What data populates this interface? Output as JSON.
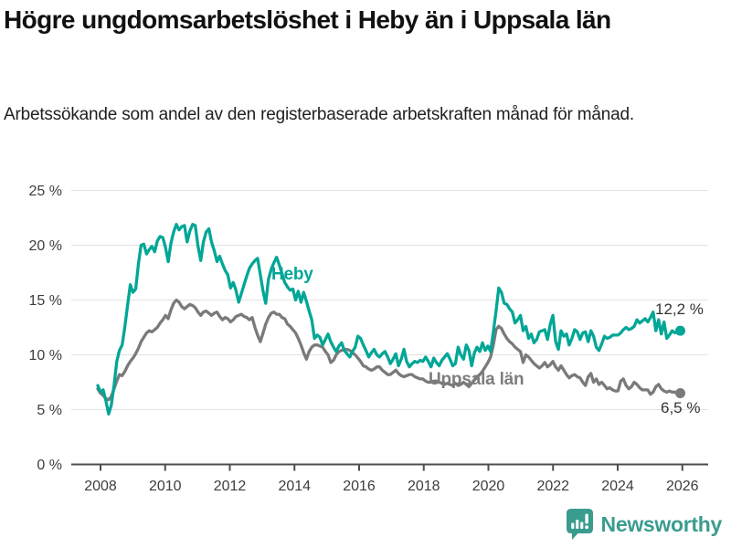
{
  "header": {
    "title": "Högre ungdomsarbetslöshet i Heby än i Uppsala län",
    "subtitle": "Arbetssökande som andel av den registerbaserade arbetskraften månad för månad."
  },
  "footer": {
    "brand": "Newsworthy",
    "logo_icon": "speech-bubble-bar-chart-icon",
    "brand_color": "#3a9c8e"
  },
  "colors": {
    "heby_line": "#00a696",
    "uppsala_line": "#7a7a7a",
    "uppsala_label": "#7d7d7d",
    "gridline": "#e2e2e2",
    "axis": "#4d4d4d",
    "tick_label": "#3d3d3d",
    "value_label": "#333333"
  },
  "chart_data": {
    "type": "line",
    "title": "Högre ungdomsarbetslöshet i Heby än i Uppsala län",
    "subtitle": "Arbetssökande som andel av den registerbaserade arbetskraften månad för månad.",
    "frequency": "monthly",
    "start_year": 2008,
    "end_year": 2025,
    "grid": "horizontal",
    "legend_position": "inline-labels",
    "ylim": [
      0,
      25
    ],
    "x_ticks": [
      2008,
      2010,
      2012,
      2014,
      2016,
      2018,
      2020,
      2022,
      2024,
      2026
    ],
    "y_ticks": [
      {
        "value": 0,
        "label": "0 %"
      },
      {
        "value": 5,
        "label": "5 %"
      },
      {
        "value": 10,
        "label": "10 %"
      },
      {
        "value": 15,
        "label": "15 %"
      },
      {
        "value": 20,
        "label": "20 %"
      },
      {
        "value": 25,
        "label": "25 %"
      }
    ],
    "series": [
      {
        "name": "Heby",
        "color": "#00a696",
        "end_label": "12,2 %",
        "end_value": 12.2,
        "values": [
          7.2,
          6.6,
          6.8,
          5.8,
          4.6,
          5.4,
          7.2,
          9.4,
          10.4,
          10.9,
          12.6,
          14.5,
          16.4,
          15.7,
          16.0,
          18.3,
          20.0,
          20.1,
          19.2,
          19.6,
          19.9,
          19.4,
          20.4,
          20.8,
          20.7,
          19.8,
          18.5,
          20.2,
          21.2,
          21.9,
          21.4,
          21.7,
          21.8,
          20.3,
          21.3,
          21.9,
          21.8,
          19.9,
          18.6,
          20.3,
          21.2,
          21.5,
          20.3,
          19.5,
          18.5,
          19.0,
          18.3,
          17.7,
          17.3,
          16.1,
          16.6,
          15.9,
          14.8,
          15.6,
          16.4,
          17.2,
          17.9,
          18.3,
          18.6,
          18.8,
          17.3,
          15.8,
          14.7,
          16.9,
          17.8,
          18.4,
          18.9,
          18.2,
          17.4,
          16.6,
          16.2,
          15.9,
          16.0,
          15.0,
          15.8,
          14.8,
          15.7,
          14.9,
          14.0,
          13.2,
          11.5,
          11.8,
          11.6,
          10.9,
          11.4,
          11.9,
          11.2,
          10.7,
          10.3,
          10.8,
          11.1,
          10.4,
          10.1,
          9.8,
          10.3,
          10.7,
          11.7,
          11.5,
          10.9,
          10.4,
          9.8,
          10.2,
          10.5,
          10.0,
          9.8,
          10.1,
          10.3,
          9.8,
          9.2,
          9.6,
          10.1,
          9.0,
          9.6,
          10.5,
          9.4,
          8.9,
          9.2,
          9.4,
          9.3,
          9.5,
          9.4,
          9.8,
          9.4,
          8.9,
          9.7,
          9.3,
          9.0,
          9.5,
          9.8,
          10.1,
          9.6,
          9.0,
          9.2,
          10.7,
          10.0,
          9.6,
          10.9,
          10.4,
          9.0,
          10.2,
          10.7,
          10.3,
          11.1,
          10.4,
          10.8,
          10.3,
          12.1,
          14.0,
          16.1,
          15.7,
          14.7,
          14.6,
          14.2,
          13.9,
          12.9,
          13.2,
          13.6,
          12.2,
          12.6,
          11.5,
          11.9,
          11.1,
          11.4,
          12.1,
          12.2,
          12.3,
          11.4,
          12.8,
          13.6,
          11.2,
          10.5,
          12.2,
          11.7,
          11.9,
          10.9,
          11.5,
          12.3,
          12.1,
          11.4,
          12.0,
          12.1,
          11.2,
          12.2,
          11.7,
          10.7,
          10.4,
          11.0,
          11.7,
          11.5,
          11.6,
          11.8,
          11.8,
          11.8,
          12.0,
          12.3,
          12.5,
          12.3,
          12.4,
          12.6,
          13.2,
          12.9,
          13.1,
          13.3,
          13.0,
          13.4,
          13.9,
          12.2,
          13.2,
          11.9,
          13.0,
          11.5,
          11.8,
          12.2,
          12.0,
          12.1,
          12.2
        ]
      },
      {
        "name": "Uppsala län",
        "color": "#7a7a7a",
        "end_label": "6,5 %",
        "end_value": 6.5,
        "values": [
          6.9,
          6.5,
          6.3,
          6.0,
          5.9,
          6.2,
          6.9,
          7.6,
          8.2,
          8.1,
          8.5,
          9.0,
          9.4,
          9.7,
          10.1,
          10.6,
          11.2,
          11.6,
          12.0,
          12.2,
          12.1,
          12.3,
          12.5,
          12.9,
          13.2,
          13.6,
          13.3,
          14.1,
          14.7,
          15.0,
          14.8,
          14.4,
          14.2,
          14.4,
          14.6,
          14.5,
          14.3,
          13.9,
          13.6,
          13.9,
          14.0,
          13.8,
          13.6,
          13.8,
          13.9,
          13.5,
          13.2,
          13.4,
          13.3,
          13.0,
          13.2,
          13.5,
          13.6,
          13.7,
          13.5,
          13.4,
          13.2,
          13.4,
          12.5,
          11.8,
          11.2,
          12.0,
          12.8,
          13.4,
          13.8,
          13.9,
          13.7,
          13.7,
          13.4,
          13.3,
          12.8,
          12.6,
          12.3,
          12.0,
          11.5,
          10.9,
          10.2,
          9.6,
          10.3,
          10.7,
          10.9,
          10.9,
          10.8,
          10.7,
          10.3,
          10.0,
          9.3,
          9.5,
          10.0,
          10.3,
          10.4,
          10.5,
          10.5,
          10.4,
          10.2,
          10.0,
          9.7,
          9.4,
          9.0,
          8.9,
          8.7,
          8.6,
          8.7,
          8.9,
          8.9,
          8.6,
          8.4,
          8.2,
          8.2,
          8.4,
          8.6,
          8.3,
          8.1,
          8.0,
          8.1,
          8.2,
          8.2,
          8.0,
          7.9,
          7.8,
          7.8,
          7.6,
          7.5,
          7.5,
          7.6,
          7.6,
          7.5,
          7.4,
          7.3,
          7.4,
          7.3,
          7.2,
          7.4,
          7.2,
          7.3,
          7.5,
          7.3,
          7.1,
          7.4,
          7.7,
          8.0,
          8.2,
          8.5,
          8.9,
          9.3,
          9.8,
          10.9,
          12.3,
          12.6,
          12.4,
          11.9,
          11.5,
          11.2,
          11.0,
          10.7,
          10.5,
          10.3,
          9.3,
          10.0,
          9.8,
          9.5,
          9.2,
          9.0,
          8.8,
          9.0,
          9.3,
          8.9,
          9.1,
          9.4,
          8.9,
          8.6,
          9.0,
          8.6,
          8.2,
          7.9,
          8.1,
          8.2,
          8.0,
          7.9,
          7.5,
          7.2,
          8.0,
          8.3,
          7.5,
          7.8,
          7.3,
          7.5,
          7.2,
          6.9,
          7.0,
          6.8,
          6.7,
          6.7,
          7.6,
          7.8,
          7.2,
          6.9,
          7.1,
          7.5,
          7.3,
          7.0,
          6.8,
          6.8,
          6.8,
          6.4,
          6.6,
          7.1,
          7.3,
          6.9,
          6.7,
          6.6,
          6.7,
          6.6,
          6.6,
          6.5,
          6.5
        ]
      }
    ]
  }
}
